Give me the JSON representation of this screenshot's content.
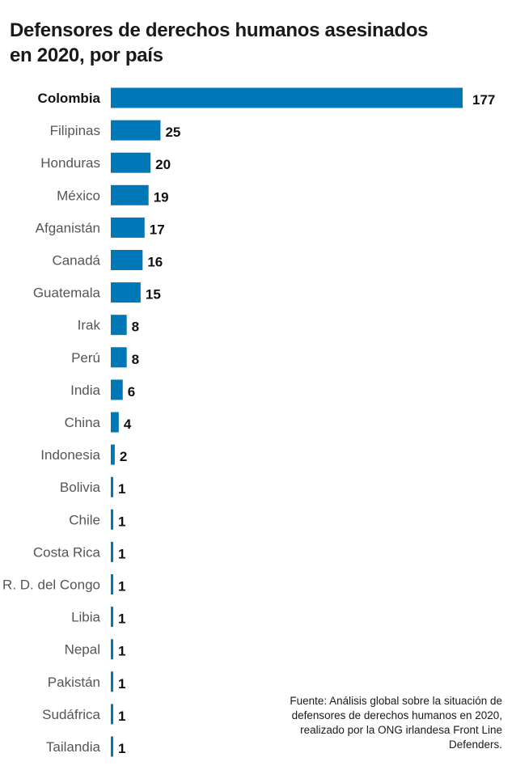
{
  "chart_data": {
    "type": "bar",
    "orientation": "horizontal",
    "title": "Defensores de derechos humanos asesinados en 2020, por país",
    "xlabel": "",
    "ylabel": "",
    "grid": false,
    "highlight": "Colombia",
    "bar_color": "#0077b6",
    "categories": [
      "Colombia",
      "Filipinas",
      "Honduras",
      "México",
      "Afganistán",
      "Canadá",
      "Guatemala",
      "Irak",
      "Perú",
      "India",
      "China",
      "Indonesia",
      "Bolivia",
      "Chile",
      "Costa Rica",
      "R. D. del Congo",
      "Libia",
      "Nepal",
      "Pakistán",
      "Sudáfrica",
      "Tailandia"
    ],
    "values": [
      177,
      25,
      20,
      19,
      17,
      16,
      15,
      8,
      8,
      6,
      4,
      2,
      1,
      1,
      1,
      1,
      1,
      1,
      1,
      1,
      1
    ],
    "xlim": [
      0,
      177
    ],
    "source": "Fuente: Análisis global sobre la situación de defensores de derechos humanos en 2020, realizado por la ONG irlandesa Front Line Defenders."
  }
}
